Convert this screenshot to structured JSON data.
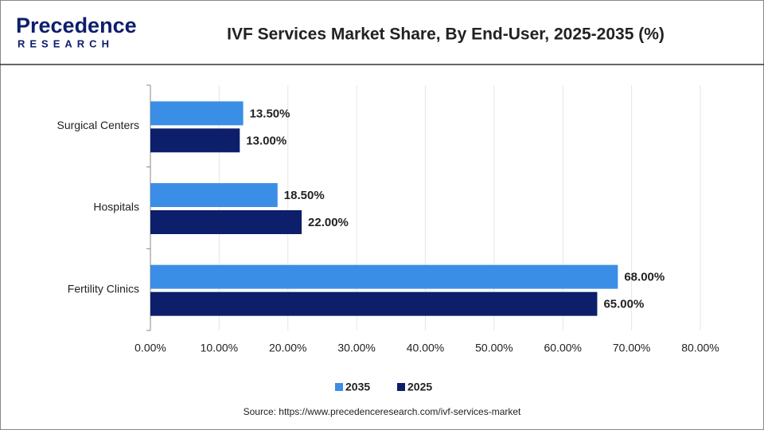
{
  "logo": {
    "name": "Precedence",
    "sub": "RESEARCH"
  },
  "chart_data": {
    "type": "hbar",
    "title": "IVF Services Market Share, By End-User, 2025-2035 (%)",
    "categories": [
      "Surgical Centers",
      "Hospitals",
      "Fertility Clinics"
    ],
    "series": [
      {
        "name": "2035",
        "color": "#3b8ee5",
        "values": [
          13.5,
          18.5,
          68
        ],
        "value_labels": [
          "13.50%",
          "18.50%",
          "68.00%"
        ]
      },
      {
        "name": "2025",
        "color": "#0d1e6b",
        "values": [
          13,
          22,
          65
        ],
        "value_labels": [
          "13.00%",
          "22.00%",
          "65.00%"
        ]
      }
    ],
    "xlim": [
      0,
      80
    ],
    "xticks": [
      {
        "value": 0,
        "label": "0.00%"
      },
      {
        "value": 10,
        "label": "10.00%"
      },
      {
        "value": 20,
        "label": "20.00%"
      },
      {
        "value": 30,
        "label": "30.00%"
      },
      {
        "value": 40,
        "label": "40.00%"
      },
      {
        "value": 50,
        "label": "50.00%"
      },
      {
        "value": 60,
        "label": "60.00%"
      },
      {
        "value": 70,
        "label": "70.00%"
      },
      {
        "value": 80,
        "label": "80.00%"
      }
    ],
    "grid": true,
    "source": "Source: https://www.precedenceresearch.com/ivf-services-market"
  }
}
